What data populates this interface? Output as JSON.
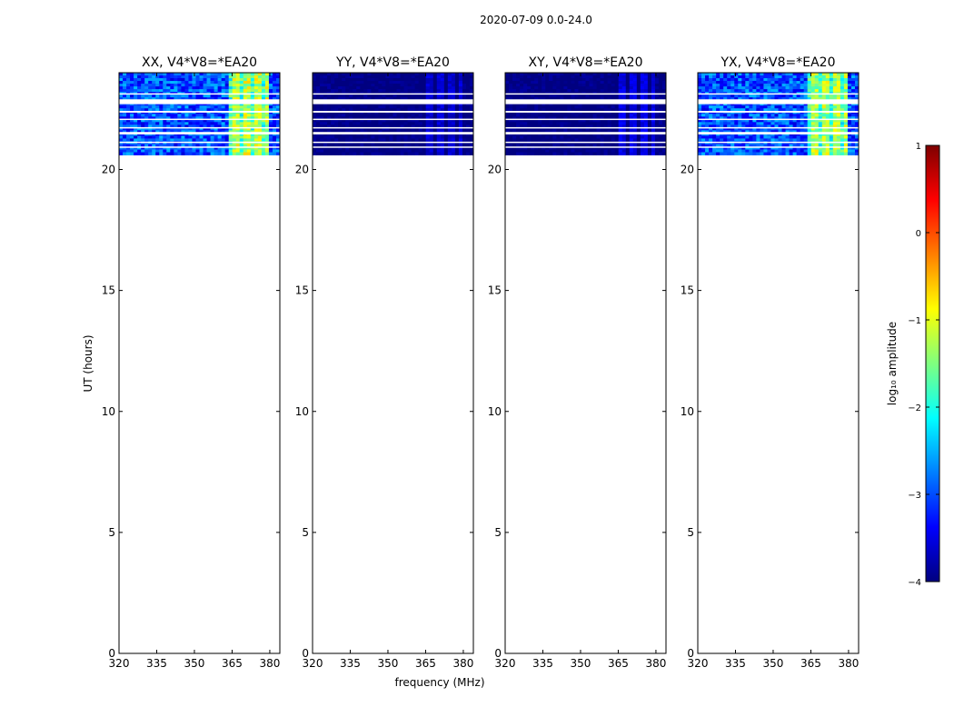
{
  "chart_data": {
    "type": "heatmap",
    "title": "2020-07-09 0.0-24.0",
    "xlabel": "frequency (MHz)",
    "ylabel": "UT (hours)",
    "xlim": [
      320,
      384
    ],
    "ylim": [
      0,
      24
    ],
    "xticks": [
      "320",
      "335",
      "350",
      "365",
      "380"
    ],
    "yticks": [
      "0",
      "5",
      "10",
      "15",
      "20"
    ],
    "data_time_range_hours": [
      20.6,
      24.0
    ],
    "bright_band_mhz": [
      364,
      380
    ],
    "colorbar": {
      "label": "log₁₀ amplitude",
      "range": [
        -4,
        1
      ],
      "ticks": [
        "−4",
        "−3",
        "−2",
        "−1",
        "0",
        "1"
      ],
      "colormap": [
        "#00007f",
        "#0000ff",
        "#007fff",
        "#00ffff",
        "#7fff7f",
        "#ffff00",
        "#ff7f00",
        "#ff0000",
        "#7f0000"
      ]
    },
    "panels": [
      {
        "title": "XX, V4*V8=*EA20",
        "key": "xx",
        "base_log": -3.0,
        "band_log": -1.2
      },
      {
        "title": "YY, V4*V8=*EA20",
        "key": "yy",
        "base_log": -4.0,
        "band_log": -3.6
      },
      {
        "title": "XY, V4*V8=*EA20",
        "key": "xy",
        "base_log": -4.0,
        "band_log": -3.5
      },
      {
        "title": "YX, V4*V8=*EA20",
        "key": "yx",
        "base_log": -3.0,
        "band_log": -1.3
      }
    ]
  }
}
